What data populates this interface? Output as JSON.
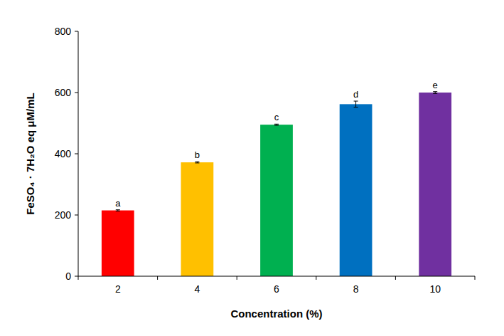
{
  "chart_data": {
    "type": "bar",
    "x_label": "Concentration (%)",
    "y_label": "FeSO₄ · 7H₂O eq μM/mL",
    "categories": [
      "2",
      "4",
      "6",
      "8",
      "10"
    ],
    "values": [
      215,
      372,
      495,
      562,
      600
    ],
    "errors": [
      2,
      2,
      2,
      10,
      3
    ],
    "annotations": [
      "a",
      "b",
      "c",
      "d",
      "e"
    ],
    "colors": [
      "#ff0000",
      "#ffc000",
      "#00b050",
      "#0070c0",
      "#7030a0"
    ],
    "ylim": [
      0,
      800
    ],
    "yticks": [
      0,
      200,
      400,
      600,
      800
    ],
    "grid": false
  }
}
